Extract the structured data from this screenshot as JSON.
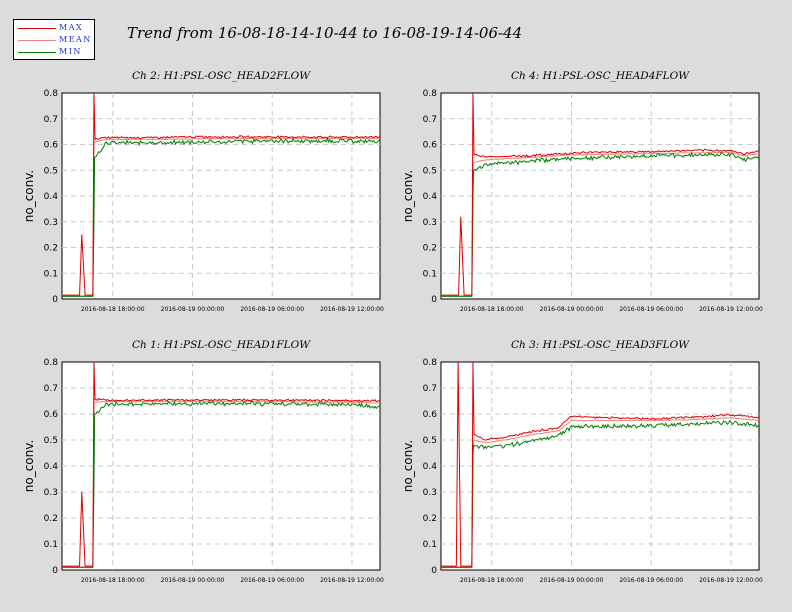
{
  "main_title": "Trend from 16-08-18-14-10-44 to 16-08-19-14-06-44",
  "legend": {
    "items": [
      {
        "label": "MAX",
        "color": "#e00000"
      },
      {
        "label": "MEAN",
        "color": "#f08080"
      },
      {
        "label": "MIN",
        "color": "#008000"
      }
    ]
  },
  "colors": {
    "max": "#e00000",
    "mean": "#f08080",
    "min": "#008000",
    "background": "#dcdcdc",
    "plot_background": "#ffffff",
    "grid": "#c8c8c8"
  },
  "chart_data": [
    {
      "type": "line",
      "title": "Ch 2: H1:PSL-OSC_HEAD2FLOW",
      "ylabel": "no_conv.",
      "ylim": [
        0,
        0.8
      ],
      "yticks": [
        "0",
        "0.1",
        "0.2",
        "0.3",
        "0.4",
        "0.5",
        "0.6",
        "0.7",
        "0.8"
      ],
      "xlim": [
        "2016-08-18 14:10:44",
        "2016-08-19 14:06:44"
      ],
      "xticks": [
        "2016-08-18 18:00:00",
        "2016-08-19 00:00:00",
        "2016-08-19 06:00:00",
        "2016-08-19 12:00:00"
      ],
      "grid": true,
      "series": [
        {
          "name": "MAX",
          "x": [
            "2016-08-18 14:10:44",
            "2016-08-18 15:30:00",
            "2016-08-18 15:40:00",
            "2016-08-18 15:55:00",
            "2016-08-18 16:30:00",
            "2016-08-18 16:35:00",
            "2016-08-18 16:40:00",
            "2016-08-18 17:30:00",
            "2016-08-18 21:00:00",
            "2016-08-19 00:00:00",
            "2016-08-19 03:00:00",
            "2016-08-19 06:00:00",
            "2016-08-19 09:00:00",
            "2016-08-19 12:00:00",
            "2016-08-19 14:06:44"
          ],
          "y": [
            0.015,
            0.015,
            0.25,
            0.015,
            0.015,
            0.8,
            0.62,
            0.625,
            0.625,
            0.628,
            0.628,
            0.628,
            0.627,
            0.627,
            0.628
          ]
        },
        {
          "name": "MEAN",
          "x": [
            "2016-08-18 14:10:44",
            "2016-08-18 16:30:00",
            "2016-08-18 16:36:00",
            "2016-08-18 17:30:00",
            "2016-08-18 21:00:00",
            "2016-08-19 00:00:00",
            "2016-08-19 06:00:00",
            "2016-08-19 12:00:00",
            "2016-08-19 14:06:44"
          ],
          "y": [
            0.012,
            0.012,
            0.61,
            0.62,
            0.62,
            0.622,
            0.624,
            0.623,
            0.624
          ]
        },
        {
          "name": "MIN",
          "x": [
            "2016-08-18 14:10:44",
            "2016-08-18 16:30:00",
            "2016-08-18 16:35:00",
            "2016-08-18 16:38:00",
            "2016-08-18 17:30:00",
            "2016-08-18 21:00:00",
            "2016-08-19 00:00:00",
            "2016-08-19 06:00:00",
            "2016-08-19 12:00:00",
            "2016-08-19 14:06:44"
          ],
          "y": [
            0.01,
            0.01,
            0.3,
            0.55,
            0.61,
            0.61,
            0.612,
            0.618,
            0.617,
            0.615
          ]
        }
      ]
    },
    {
      "type": "line",
      "title": "Ch 4: H1:PSL-OSC_HEAD4FLOW",
      "ylabel": "no_conv.",
      "ylim": [
        0,
        0.8
      ],
      "yticks": [
        "0",
        "0.1",
        "0.2",
        "0.3",
        "0.4",
        "0.5",
        "0.6",
        "0.7",
        "0.8"
      ],
      "xlim": [
        "2016-08-18 14:10:44",
        "2016-08-19 14:06:44"
      ],
      "xticks": [
        "2016-08-18 18:00:00",
        "2016-08-19 00:00:00",
        "2016-08-19 06:00:00",
        "2016-08-19 12:00:00"
      ],
      "grid": true,
      "series": [
        {
          "name": "MAX",
          "x": [
            "2016-08-18 14:10:44",
            "2016-08-18 15:30:00",
            "2016-08-18 15:40:00",
            "2016-08-18 15:55:00",
            "2016-08-18 16:30:00",
            "2016-08-18 16:35:00",
            "2016-08-18 16:40:00",
            "2016-08-18 17:30:00",
            "2016-08-18 21:00:00",
            "2016-08-19 00:00:00",
            "2016-08-19 03:00:00",
            "2016-08-19 06:00:00",
            "2016-08-19 09:00:00",
            "2016-08-19 12:00:00",
            "2016-08-19 13:00:00",
            "2016-08-19 14:06:44"
          ],
          "y": [
            0.015,
            0.015,
            0.32,
            0.015,
            0.015,
            0.8,
            0.56,
            0.55,
            0.555,
            0.565,
            0.57,
            0.57,
            0.575,
            0.575,
            0.56,
            0.575
          ]
        },
        {
          "name": "MEAN",
          "x": [
            "2016-08-18 14:10:44",
            "2016-08-18 16:30:00",
            "2016-08-18 16:36:00",
            "2016-08-18 17:30:00",
            "2016-08-18 21:00:00",
            "2016-08-19 00:00:00",
            "2016-08-19 06:00:00",
            "2016-08-19 12:00:00",
            "2016-08-19 13:00:00",
            "2016-08-19 14:06:44"
          ],
          "y": [
            0.012,
            0.012,
            0.53,
            0.54,
            0.55,
            0.56,
            0.565,
            0.57,
            0.555,
            0.565
          ]
        },
        {
          "name": "MIN",
          "x": [
            "2016-08-18 14:10:44",
            "2016-08-18 16:30:00",
            "2016-08-18 16:35:00",
            "2016-08-18 16:38:00",
            "2016-08-18 17:30:00",
            "2016-08-18 21:00:00",
            "2016-08-19 00:00:00",
            "2016-08-19 06:00:00",
            "2016-08-19 12:00:00",
            "2016-08-19 13:00:00",
            "2016-08-19 14:06:44"
          ],
          "y": [
            0.01,
            0.01,
            0.4,
            0.5,
            0.525,
            0.54,
            0.55,
            0.56,
            0.565,
            0.545,
            0.555
          ]
        }
      ]
    },
    {
      "type": "line",
      "title": "Ch 1: H1:PSL-OSC_HEAD1FLOW",
      "ylabel": "no_conv.",
      "ylim": [
        0,
        0.8
      ],
      "yticks": [
        "0",
        "0.1",
        "0.2",
        "0.3",
        "0.4",
        "0.5",
        "0.6",
        "0.7",
        "0.8"
      ],
      "xlim": [
        "2016-08-18 14:10:44",
        "2016-08-19 14:06:44"
      ],
      "xticks": [
        "2016-08-18 18:00:00",
        "2016-08-19 00:00:00",
        "2016-08-19 06:00:00",
        "2016-08-19 12:00:00"
      ],
      "grid": true,
      "series": [
        {
          "name": "MAX",
          "x": [
            "2016-08-18 14:10:44",
            "2016-08-18 15:30:00",
            "2016-08-18 15:40:00",
            "2016-08-18 15:55:00",
            "2016-08-18 16:30:00",
            "2016-08-18 16:35:00",
            "2016-08-18 16:40:00",
            "2016-08-18 17:30:00",
            "2016-08-18 21:00:00",
            "2016-08-19 00:00:00",
            "2016-08-19 06:00:00",
            "2016-08-19 12:00:00",
            "2016-08-19 14:06:44"
          ],
          "y": [
            0.015,
            0.015,
            0.3,
            0.015,
            0.015,
            0.8,
            0.655,
            0.652,
            0.652,
            0.652,
            0.652,
            0.65,
            0.648
          ]
        },
        {
          "name": "MEAN",
          "x": [
            "2016-08-18 14:10:44",
            "2016-08-18 16:30:00",
            "2016-08-18 16:36:00",
            "2016-08-18 17:30:00",
            "2016-08-18 21:00:00",
            "2016-08-19 00:00:00",
            "2016-08-19 06:00:00",
            "2016-08-19 12:00:00",
            "2016-08-19 14:06:44"
          ],
          "y": [
            0.012,
            0.012,
            0.645,
            0.648,
            0.648,
            0.648,
            0.648,
            0.645,
            0.642
          ]
        },
        {
          "name": "MIN",
          "x": [
            "2016-08-18 14:10:44",
            "2016-08-18 16:30:00",
            "2016-08-18 16:35:00",
            "2016-08-18 16:38:00",
            "2016-08-18 17:30:00",
            "2016-08-18 21:00:00",
            "2016-08-19 00:00:00",
            "2016-08-19 06:00:00",
            "2016-08-19 12:00:00",
            "2016-08-19 14:06:44"
          ],
          "y": [
            0.01,
            0.01,
            0.33,
            0.6,
            0.642,
            0.643,
            0.643,
            0.643,
            0.64,
            0.63
          ]
        }
      ]
    },
    {
      "type": "line",
      "title": "Ch 3: H1:PSL-OSC_HEAD3FLOW",
      "ylabel": "no_conv.",
      "ylim": [
        0,
        0.8
      ],
      "yticks": [
        "0",
        "0.1",
        "0.2",
        "0.3",
        "0.4",
        "0.5",
        "0.6",
        "0.7",
        "0.8"
      ],
      "xlim": [
        "2016-08-18 14:10:44",
        "2016-08-19 14:06:44"
      ],
      "xticks": [
        "2016-08-18 18:00:00",
        "2016-08-19 00:00:00",
        "2016-08-19 06:00:00",
        "2016-08-19 12:00:00"
      ],
      "grid": true,
      "series": [
        {
          "name": "MAX",
          "x": [
            "2016-08-18 14:10:44",
            "2016-08-18 15:20:00",
            "2016-08-18 15:28:00",
            "2016-08-18 15:40:00",
            "2016-08-18 16:30:00",
            "2016-08-18 16:35:00",
            "2016-08-18 16:40:00",
            "2016-08-18 17:30:00",
            "2016-08-18 19:00:00",
            "2016-08-18 21:00:00",
            "2016-08-18 23:00:00",
            "2016-08-19 00:00:00",
            "2016-08-19 02:00:00",
            "2016-08-19 06:00:00",
            "2016-08-19 09:00:00",
            "2016-08-19 12:00:00",
            "2016-08-19 14:06:44"
          ],
          "y": [
            0.015,
            0.015,
            0.8,
            0.015,
            0.015,
            0.8,
            0.52,
            0.5,
            0.51,
            0.53,
            0.545,
            0.59,
            0.585,
            0.58,
            0.585,
            0.595,
            0.585
          ]
        },
        {
          "name": "MEAN",
          "x": [
            "2016-08-18 14:10:44",
            "2016-08-18 16:30:00",
            "2016-08-18 16:36:00",
            "2016-08-18 17:30:00",
            "2016-08-18 19:00:00",
            "2016-08-18 21:00:00",
            "2016-08-18 23:00:00",
            "2016-08-19 00:00:00",
            "2016-08-19 02:00:00",
            "2016-08-19 06:00:00",
            "2016-08-19 09:00:00",
            "2016-08-19 12:00:00",
            "2016-08-19 14:06:44"
          ],
          "y": [
            0.012,
            0.012,
            0.5,
            0.49,
            0.5,
            0.52,
            0.535,
            0.575,
            0.575,
            0.575,
            0.578,
            0.585,
            0.575
          ]
        },
        {
          "name": "MIN",
          "x": [
            "2016-08-18 14:10:44",
            "2016-08-18 16:30:00",
            "2016-08-18 16:35:00",
            "2016-08-18 16:38:00",
            "2016-08-18 17:30:00",
            "2016-08-18 19:00:00",
            "2016-08-18 21:00:00",
            "2016-08-18 23:00:00",
            "2016-08-19 00:00:00",
            "2016-08-19 02:00:00",
            "2016-08-19 06:00:00",
            "2016-08-19 09:00:00",
            "2016-08-19 12:00:00",
            "2016-08-19 14:06:44"
          ],
          "y": [
            0.01,
            0.01,
            0.44,
            0.48,
            0.475,
            0.48,
            0.5,
            0.52,
            0.555,
            0.555,
            0.56,
            0.565,
            0.57,
            0.56
          ]
        }
      ]
    }
  ]
}
